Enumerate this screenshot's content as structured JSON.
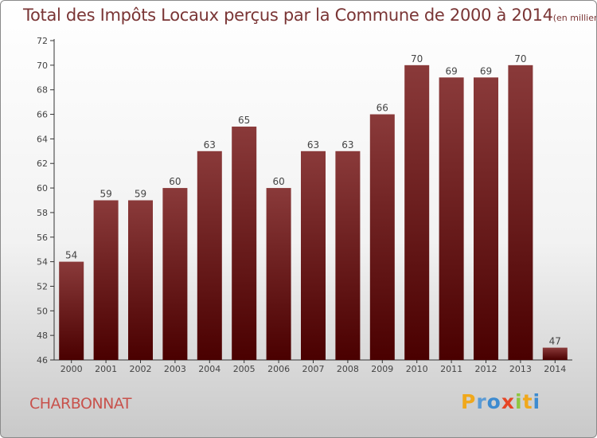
{
  "title": {
    "main": "Total des Impôts Locaux perçus par la Commune de 2000 à 2014",
    "unit": "(en milliers d'€)"
  },
  "commune": "CHARBONNAT",
  "logo": {
    "letters": [
      "P",
      "r",
      "o",
      "x",
      "i",
      "t",
      "i"
    ],
    "colors": [
      "#f0a81c",
      "#5b9bd5",
      "#3d8bd0",
      "#e64626",
      "#8dc63f",
      "#f0a81c",
      "#3d8bd0"
    ]
  },
  "colors": {
    "bar_top": "#8a3a3a",
    "bar_bottom": "#4a0000",
    "title": "#7a3535",
    "commune": "#c8524c"
  },
  "chart_data": {
    "type": "bar",
    "title": "Total des Impôts Locaux perçus par la Commune de 2000 à 2014",
    "xlabel": "",
    "ylabel": "en milliers d'€",
    "categories": [
      "2000",
      "2001",
      "2002",
      "2003",
      "2004",
      "2005",
      "2006",
      "2007",
      "2008",
      "2009",
      "2010",
      "2011",
      "2012",
      "2013",
      "2014"
    ],
    "values": [
      54,
      59,
      59,
      60,
      63,
      65,
      60,
      63,
      63,
      66,
      70,
      69,
      69,
      70,
      47
    ],
    "ylim": [
      46,
      72
    ],
    "yticks": [
      46,
      48,
      50,
      52,
      54,
      56,
      58,
      60,
      62,
      64,
      66,
      68,
      70,
      72
    ],
    "grid": false
  }
}
